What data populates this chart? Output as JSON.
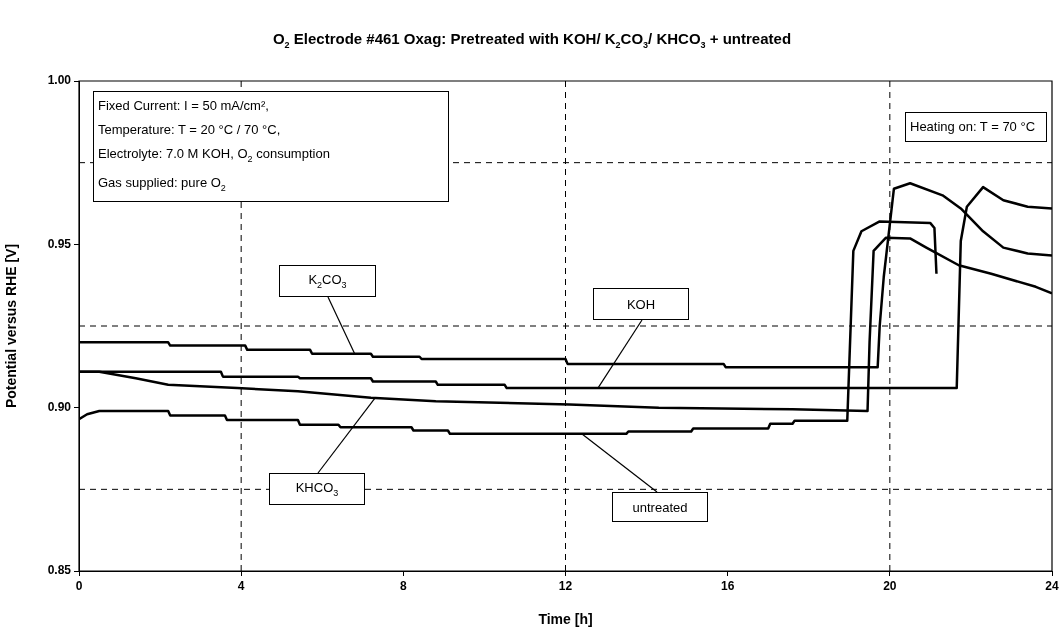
{
  "chart_data": {
    "type": "line",
    "title": "O$_{2}$ Electrode #461 Oxag: Pretreated with KOH/ K$_{2}$CO$_{3}$/ KHCO$_{3}$ + untreated",
    "xlabel": "Time [h]",
    "ylabel": "Potential versus RHE [V]",
    "xlim": [
      0,
      24
    ],
    "xticks": [
      0,
      4,
      8,
      12,
      16,
      20,
      24
    ],
    "ylim": [
      0.85,
      1.0
    ],
    "yticks": [
      0.85,
      {
        "value": 0.9,
        "label": "0.90"
      },
      0.95,
      {
        "value": 1.0,
        "label": "1.00"
      }
    ],
    "grid": false,
    "legend": false,
    "marker": "none",
    "line_style": "solid",
    "ref_lines": [
      {
        "axis": "x",
        "value": 4,
        "color": "#000000",
        "line_style": "dashed"
      },
      {
        "axis": "x",
        "value": 12,
        "color": "#000000",
        "line_style": "dashed"
      },
      {
        "axis": "x",
        "value": 20,
        "color": "#000000",
        "line_style": "dashed"
      },
      {
        "axis": "y",
        "value": 0.875,
        "color": "#000000",
        "line_style": "dashed"
      },
      {
        "axis": "y",
        "value": 0.925,
        "color": "#000000",
        "line_style": "dashed"
      },
      {
        "axis": "y",
        "value": 0.975,
        "color": "#000000",
        "line_style": "dashed"
      }
    ],
    "annotations": [
      "Fixed Current: I = 50 mA/cm²,\nTemperature: T = 20 °C / 70 °C,\nElectrolyte: 7.0 M KOH, O$_{2}$ consumption\nGas supplied: pure O$_{2}$",
      "Heating on: T = 70 °C"
    ],
    "series": [
      {
        "name": "K$_{2}$CO$_{3}$",
        "color": "#000000",
        "x": [
          0,
          2.2,
          2.25,
          4.1,
          4.15,
          5.7,
          5.75,
          7.2,
          7.25,
          8.4,
          8.45,
          12,
          12.05,
          15.9,
          15.95,
          19.7,
          19.75,
          19.85,
          20.1,
          20.5,
          21.3,
          21.75,
          22.3,
          22.8,
          23.4,
          24
        ],
        "values": [
          0.92,
          0.92,
          0.919,
          0.919,
          0.9177,
          0.9177,
          0.9165,
          0.9165,
          0.9156,
          0.9156,
          0.9149,
          0.9149,
          0.9134,
          0.9134,
          0.9124,
          0.9124,
          0.925,
          0.94,
          0.967,
          0.9687,
          0.965,
          0.961,
          0.954,
          0.949,
          0.9472,
          0.9466
        ]
      },
      {
        "name": "KOH",
        "color": "#000000",
        "x": [
          0,
          3.5,
          3.55,
          5.4,
          5.45,
          7.2,
          7.25,
          8.8,
          8.85,
          10.5,
          10.55,
          21.65,
          21.75,
          21.9,
          22.3,
          22.8,
          23.4,
          24
        ],
        "values": [
          0.911,
          0.911,
          0.9095,
          0.9095,
          0.909,
          0.909,
          0.908,
          0.908,
          0.907,
          0.907,
          0.906,
          0.906,
          0.951,
          0.9615,
          0.9675,
          0.9635,
          0.9615,
          0.961
        ]
      },
      {
        "name": "KHCO$_{3}$",
        "color": "#000000",
        "x": [
          0,
          0.5,
          1.4,
          2.2,
          3.9,
          5.4,
          7.2,
          8.8,
          12.1,
          14.3,
          17.6,
          19.45,
          19.5,
          19.6,
          19.9,
          20.5,
          20.9,
          21.7,
          22.5,
          23.6,
          24
        ],
        "values": [
          0.911,
          0.911,
          0.909,
          0.907,
          0.906,
          0.905,
          0.903,
          0.902,
          0.901,
          0.9,
          0.8995,
          0.899,
          0.92,
          0.948,
          0.952,
          0.9518,
          0.949,
          0.9436,
          0.941,
          0.937,
          0.935
        ]
      },
      {
        "name": "untreated",
        "color": "#000000",
        "x": [
          0,
          0.2,
          0.5,
          2.2,
          2.25,
          3.6,
          3.65,
          5.4,
          5.45,
          6.4,
          6.45,
          8.2,
          8.25,
          9.1,
          9.15,
          13.5,
          13.55,
          15.1,
          15.15,
          17,
          17.05,
          17.6,
          17.65,
          18.95,
          19.1,
          19.3,
          19.75,
          21,
          21.1,
          21.15
        ],
        "values": [
          0.8965,
          0.898,
          0.899,
          0.899,
          0.8976,
          0.8976,
          0.8962,
          0.8962,
          0.8948,
          0.8948,
          0.894,
          0.894,
          0.893,
          0.893,
          0.892,
          0.892,
          0.8927,
          0.8927,
          0.8936,
          0.8936,
          0.8951,
          0.8951,
          0.896,
          0.896,
          0.948,
          0.954,
          0.957,
          0.9565,
          0.955,
          0.941
        ]
      }
    ]
  }
}
